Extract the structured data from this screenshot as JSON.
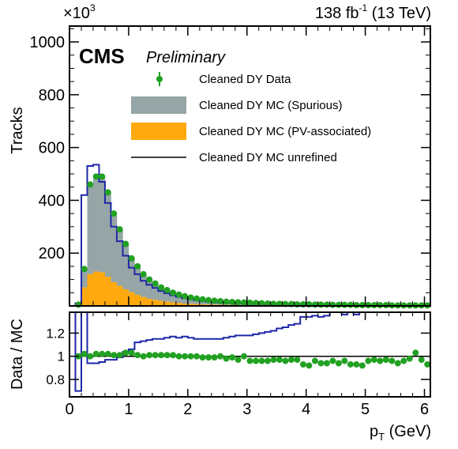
{
  "header": {
    "scale_label": "×10",
    "scale_exp": "3",
    "lumi_label": "138 fb",
    "lumi_exp": "-1",
    "lumi_energy": " (13 TeV)",
    "experiment": "CMS",
    "status": "Preliminary"
  },
  "colors": {
    "spurious": "#96a6a6",
    "pv_associated": "#ffa90e",
    "unrefined_line": "#1f27a8",
    "data_points": "#21a121"
  },
  "chart_data": [
    {
      "type": "bar",
      "panel": "main",
      "xlabel": "",
      "ylabel": "Tracks",
      "ylim": [
        0,
        1060
      ],
      "xlim": [
        0,
        6.1
      ],
      "y_scale_factor": "×10^3",
      "yticks": [
        200,
        400,
        600,
        800,
        1000
      ],
      "legend_position": "top-right",
      "bin_edges": [
        0.0,
        0.1,
        0.2,
        0.3,
        0.4,
        0.5,
        0.6,
        0.7,
        0.8,
        0.9,
        1.0,
        1.1,
        1.2,
        1.3,
        1.4,
        1.5,
        1.6,
        1.7,
        1.8,
        1.9,
        2.0,
        2.1,
        2.2,
        2.3,
        2.4,
        2.5,
        2.6,
        2.7,
        2.8,
        2.9,
        3.0,
        3.1,
        3.2,
        3.3,
        3.4,
        3.5,
        3.6,
        3.7,
        3.8,
        3.9,
        4.0,
        4.1,
        4.2,
        4.3,
        4.4,
        4.5,
        4.6,
        4.7,
        4.8,
        4.9,
        5.0,
        5.1,
        5.2,
        5.3,
        5.4,
        5.5,
        5.6,
        5.7,
        5.8,
        5.9,
        6.0,
        6.1
      ],
      "series": [
        {
          "name": "Cleaned DY Data",
          "style": "points",
          "values": [
            0,
            5,
            140,
            460,
            490,
            490,
            430,
            350,
            290,
            235,
            180,
            150,
            120,
            100,
            85,
            70,
            60,
            50,
            43,
            37,
            32,
            28,
            25,
            22,
            20,
            18,
            16,
            15,
            14,
            13,
            12,
            11,
            10,
            9,
            8,
            8,
            7,
            7,
            6,
            6,
            6,
            5,
            5,
            5,
            4,
            4,
            4,
            4,
            3,
            3,
            3,
            3,
            3,
            3,
            2,
            2,
            2,
            2,
            2,
            2,
            2
          ]
        },
        {
          "name": "Cleaned DY MC (Spurious)",
          "style": "stack",
          "values": [
            0,
            3,
            72,
            340,
            365,
            368,
            320,
            255,
            210,
            170,
            130,
            108,
            86,
            73,
            62,
            51,
            44,
            37,
            32,
            28,
            24,
            21,
            19,
            17,
            15,
            14,
            12,
            11,
            10,
            10,
            9,
            8,
            7,
            7,
            6,
            6,
            5,
            5,
            5,
            5,
            4,
            4,
            4,
            4,
            3,
            3,
            3,
            3,
            2,
            2,
            2,
            2,
            2,
            2,
            2,
            2,
            2,
            2,
            2,
            2,
            2
          ]
        },
        {
          "name": "Cleaned DY MC (PV-associated)",
          "style": "stack",
          "values": [
            0,
            2,
            70,
            120,
            130,
            127,
            110,
            90,
            76,
            63,
            52,
            42,
            34,
            27,
            23,
            19,
            16,
            13,
            11,
            9,
            8,
            7,
            6,
            5,
            5,
            4,
            4,
            4,
            4,
            3,
            3,
            3,
            3,
            2,
            2,
            2,
            2,
            2,
            1,
            1,
            2,
            1,
            1,
            1,
            1,
            1,
            1,
            1,
            1,
            1,
            1,
            1,
            1,
            1,
            1,
            0,
            0,
            0,
            0,
            0,
            0
          ]
        },
        {
          "name": "Cleaned DY MC unrefined",
          "style": "step",
          "values": [
            0,
            10,
            420,
            530,
            535,
            470,
            390,
            300,
            245,
            190,
            145,
            120,
            95,
            80,
            68,
            56,
            48,
            40,
            34,
            29,
            25,
            22,
            19,
            17,
            15,
            13,
            12,
            11,
            10,
            9,
            8,
            7,
            7,
            6,
            6,
            5,
            5,
            5,
            4,
            4,
            4,
            4,
            3,
            3,
            3,
            3,
            3,
            3,
            2,
            2,
            2,
            2,
            2,
            2,
            2,
            2,
            2,
            2,
            2,
            2,
            2
          ]
        }
      ]
    },
    {
      "type": "scatter",
      "panel": "ratio",
      "xlabel": "p_T (GeV)",
      "ylabel": "Data / MC",
      "xlim": [
        0,
        6.1
      ],
      "ylim": [
        0.65,
        1.38
      ],
      "xticks": [
        0,
        1,
        2,
        3,
        4,
        5,
        6
      ],
      "yticks": [
        0.8,
        1,
        1.2
      ],
      "reference_line": 1,
      "bin_edges": [
        0.0,
        0.1,
        0.2,
        0.3,
        0.4,
        0.5,
        0.6,
        0.7,
        0.8,
        0.9,
        1.0,
        1.1,
        1.2,
        1.3,
        1.4,
        1.5,
        1.6,
        1.7,
        1.8,
        1.9,
        2.0,
        2.1,
        2.2,
        2.3,
        2.4,
        2.5,
        2.6,
        2.7,
        2.8,
        2.9,
        3.0,
        3.1,
        3.2,
        3.3,
        3.4,
        3.5,
        3.6,
        3.7,
        3.8,
        3.9,
        4.0,
        4.1,
        4.2,
        4.3,
        4.4,
        4.5,
        4.6,
        4.7,
        4.8,
        4.9,
        5.0,
        5.1,
        5.2,
        5.3,
        5.4,
        5.5,
        5.6,
        5.7,
        5.8,
        5.9,
        6.0,
        6.1
      ],
      "series": [
        {
          "name": "Data / MC",
          "style": "points",
          "values": [
            null,
            1.0,
            1.02,
            1.0,
            1.02,
            1.02,
            1.02,
            1.01,
            1.01,
            1.03,
            1.03,
            1.01,
            1.0,
            1.01,
            1.01,
            1.01,
            1.01,
            1.01,
            1.0,
            1.0,
            1.0,
            1.0,
            0.99,
            0.99,
            0.99,
            1.0,
            0.98,
            0.99,
            0.97,
            1.0,
            0.96,
            0.96,
            0.96,
            0.96,
            0.97,
            0.97,
            0.96,
            0.97,
            0.97,
            0.93,
            0.92,
            0.96,
            0.94,
            0.94,
            0.96,
            0.94,
            0.96,
            0.93,
            0.93,
            0.92,
            0.96,
            0.97,
            0.96,
            0.97,
            0.96,
            0.94,
            0.96,
            0.98,
            1.03,
            0.97,
            0.93
          ]
        },
        {
          "name": "Cleaned DY MC unrefined",
          "style": "step",
          "values": [
            1.38,
            0.7,
            1.4,
            0.94,
            0.94,
            0.95,
            0.97,
            0.97,
            0.99,
            1.04,
            1.06,
            1.12,
            1.13,
            1.14,
            1.15,
            1.15,
            1.16,
            1.17,
            1.16,
            1.17,
            1.16,
            1.15,
            1.15,
            1.15,
            1.15,
            1.15,
            1.16,
            1.17,
            1.18,
            1.18,
            1.18,
            1.19,
            1.2,
            1.21,
            1.22,
            1.24,
            1.25,
            1.27,
            1.28,
            1.34,
            1.34,
            1.35,
            1.34,
            1.35,
            1.4,
            1.4,
            1.36,
            1.4,
            1.36,
            1.4,
            1.4,
            1.4,
            1.4,
            1.4,
            1.4,
            1.4,
            1.4,
            1.4,
            1.4,
            1.4,
            1.4
          ]
        }
      ]
    }
  ]
}
